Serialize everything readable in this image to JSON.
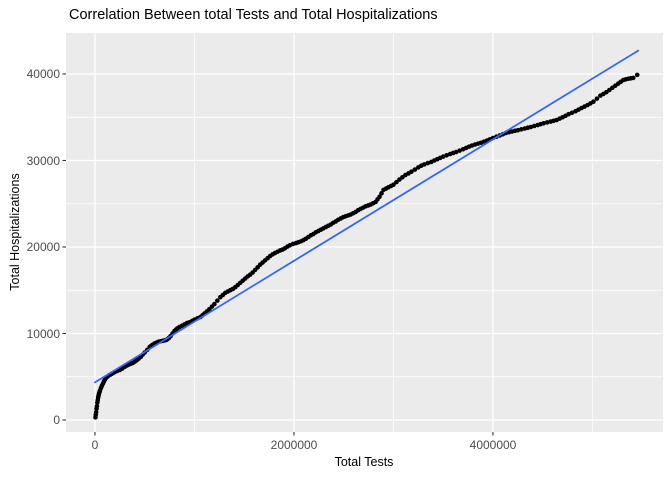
{
  "title": "Correlation Between total Tests and Total Hospitalizations",
  "chart_data": {
    "type": "scatter",
    "title": "Correlation Between total Tests and Total Hospitalizations",
    "xlabel": "Total Tests",
    "ylabel": "Total Hospitalizations",
    "xlim": [
      -291000,
      5709000
    ],
    "ylim": [
      -1390,
      44740
    ],
    "grid": true,
    "legend": false,
    "panel_bg": "#EBEBEB",
    "grid_color": "#FFFFFF",
    "tick_color": "#333333",
    "point_color": "#000000",
    "x_ticks": [
      {
        "value": 0,
        "label": "0"
      },
      {
        "value": 2000000,
        "label": "2000000"
      },
      {
        "value": 4000000,
        "label": "4000000"
      }
    ],
    "x_minor": [
      1000000,
      3000000,
      5000000
    ],
    "y_ticks": [
      {
        "value": 0,
        "label": "0"
      },
      {
        "value": 10000,
        "label": "10000"
      },
      {
        "value": 20000,
        "label": "20000"
      },
      {
        "value": 30000,
        "label": "30000"
      },
      {
        "value": 40000,
        "label": "40000"
      }
    ],
    "y_minor": [
      5000,
      15000,
      25000,
      35000
    ],
    "trend_line": {
      "color": "#3366FF",
      "x": [
        0,
        5460000
      ],
      "y": [
        4350,
        42700
      ]
    },
    "points": [
      [
        5000,
        300
      ],
      [
        8000,
        600
      ],
      [
        12000,
        900
      ],
      [
        16000,
        1300
      ],
      [
        20000,
        1600
      ],
      [
        24000,
        2000
      ],
      [
        28000,
        2300
      ],
      [
        32000,
        2600
      ],
      [
        36000,
        2800
      ],
      [
        40000,
        3000
      ],
      [
        45000,
        3200
      ],
      [
        50000,
        3400
      ],
      [
        60000,
        3700
      ],
      [
        70000,
        3950
      ],
      [
        80000,
        4200
      ],
      [
        90000,
        4450
      ],
      [
        100000,
        4650
      ],
      [
        110000,
        4860
      ],
      [
        125000,
        5000
      ],
      [
        140000,
        5150
      ],
      [
        155000,
        5250
      ],
      [
        170000,
        5350
      ],
      [
        185000,
        5450
      ],
      [
        200000,
        5550
      ],
      [
        225000,
        5670
      ],
      [
        250000,
        5780
      ],
      [
        275000,
        5950
      ],
      [
        300000,
        6150
      ],
      [
        320000,
        6300
      ],
      [
        340000,
        6400
      ],
      [
        360000,
        6500
      ],
      [
        380000,
        6590
      ],
      [
        400000,
        6750
      ],
      [
        420000,
        6900
      ],
      [
        440000,
        7100
      ],
      [
        460000,
        7300
      ],
      [
        480000,
        7550
      ],
      [
        500000,
        7800
      ],
      [
        525000,
        8100
      ],
      [
        550000,
        8440
      ],
      [
        565000,
        8570
      ],
      [
        580000,
        8700
      ],
      [
        600000,
        8850
      ],
      [
        620000,
        8950
      ],
      [
        640000,
        9050
      ],
      [
        660000,
        9100
      ],
      [
        680000,
        9150
      ],
      [
        700000,
        9200
      ],
      [
        715000,
        9250
      ],
      [
        730000,
        9350
      ],
      [
        745000,
        9500
      ],
      [
        760000,
        9700
      ],
      [
        780000,
        10000
      ],
      [
        800000,
        10300
      ],
      [
        815000,
        10450
      ],
      [
        830000,
        10600
      ],
      [
        850000,
        10750
      ],
      [
        875000,
        10900
      ],
      [
        900000,
        11050
      ],
      [
        925000,
        11200
      ],
      [
        950000,
        11300
      ],
      [
        975000,
        11450
      ],
      [
        1000000,
        11600
      ],
      [
        1030000,
        11750
      ],
      [
        1060000,
        11900
      ],
      [
        1080000,
        12100
      ],
      [
        1100000,
        12300
      ],
      [
        1125000,
        12550
      ],
      [
        1150000,
        12800
      ],
      [
        1175000,
        13100
      ],
      [
        1200000,
        13400
      ],
      [
        1230000,
        13800
      ],
      [
        1260000,
        14200
      ],
      [
        1285000,
        14450
      ],
      [
        1310000,
        14700
      ],
      [
        1335000,
        14850
      ],
      [
        1360000,
        15000
      ],
      [
        1385000,
        15150
      ],
      [
        1410000,
        15350
      ],
      [
        1435000,
        15600
      ],
      [
        1460000,
        15850
      ],
      [
        1485000,
        16100
      ],
      [
        1510000,
        16350
      ],
      [
        1535000,
        16600
      ],
      [
        1560000,
        16800
      ],
      [
        1585000,
        17050
      ],
      [
        1610000,
        17350
      ],
      [
        1635000,
        17650
      ],
      [
        1660000,
        17950
      ],
      [
        1685000,
        18200
      ],
      [
        1710000,
        18450
      ],
      [
        1735000,
        18700
      ],
      [
        1760000,
        18950
      ],
      [
        1785000,
        19150
      ],
      [
        1810000,
        19300
      ],
      [
        1835000,
        19450
      ],
      [
        1860000,
        19600
      ],
      [
        1885000,
        19700
      ],
      [
        1910000,
        19850
      ],
      [
        1935000,
        20050
      ],
      [
        1960000,
        20200
      ],
      [
        1990000,
        20350
      ],
      [
        2020000,
        20450
      ],
      [
        2045000,
        20550
      ],
      [
        2070000,
        20650
      ],
      [
        2095000,
        20800
      ],
      [
        2120000,
        20950
      ],
      [
        2145000,
        21150
      ],
      [
        2170000,
        21350
      ],
      [
        2195000,
        21500
      ],
      [
        2220000,
        21700
      ],
      [
        2245000,
        21850
      ],
      [
        2270000,
        22000
      ],
      [
        2295000,
        22150
      ],
      [
        2320000,
        22300
      ],
      [
        2345000,
        22450
      ],
      [
        2370000,
        22600
      ],
      [
        2395000,
        22800
      ],
      [
        2420000,
        22950
      ],
      [
        2445000,
        23150
      ],
      [
        2470000,
        23300
      ],
      [
        2495000,
        23450
      ],
      [
        2520000,
        23550
      ],
      [
        2545000,
        23650
      ],
      [
        2570000,
        23750
      ],
      [
        2595000,
        23900
      ],
      [
        2620000,
        24050
      ],
      [
        2645000,
        24250
      ],
      [
        2670000,
        24400
      ],
      [
        2695000,
        24550
      ],
      [
        2720000,
        24700
      ],
      [
        2745000,
        24800
      ],
      [
        2770000,
        24900
      ],
      [
        2795000,
        25050
      ],
      [
        2820000,
        25200
      ],
      [
        2840000,
        25500
      ],
      [
        2860000,
        25800
      ],
      [
        2880000,
        26200
      ],
      [
        2900000,
        26600
      ],
      [
        2925000,
        26750
      ],
      [
        2950000,
        26900
      ],
      [
        2975000,
        27050
      ],
      [
        3000000,
        27200
      ],
      [
        3030000,
        27500
      ],
      [
        3060000,
        27800
      ],
      [
        3090000,
        28060
      ],
      [
        3120000,
        28320
      ],
      [
        3150000,
        28500
      ],
      [
        3180000,
        28700
      ],
      [
        3215000,
        28950
      ],
      [
        3250000,
        29200
      ],
      [
        3280000,
        29400
      ],
      [
        3310000,
        29550
      ],
      [
        3345000,
        29700
      ],
      [
        3380000,
        29830
      ],
      [
        3410000,
        30000
      ],
      [
        3440000,
        30150
      ],
      [
        3470000,
        30300
      ],
      [
        3500000,
        30450
      ],
      [
        3535000,
        30600
      ],
      [
        3570000,
        30750
      ],
      [
        3600000,
        30870
      ],
      [
        3630000,
        30980
      ],
      [
        3665000,
        31140
      ],
      [
        3700000,
        31300
      ],
      [
        3730000,
        31450
      ],
      [
        3760000,
        31600
      ],
      [
        3790000,
        31730
      ],
      [
        3820000,
        31850
      ],
      [
        3850000,
        31950
      ],
      [
        3880000,
        32050
      ],
      [
        3910000,
        32180
      ],
      [
        3940000,
        32300
      ],
      [
        3970000,
        32450
      ],
      [
        4000000,
        32600
      ],
      [
        4035000,
        32750
      ],
      [
        4070000,
        32900
      ],
      [
        4100000,
        33040
      ],
      [
        4130000,
        33180
      ],
      [
        4160000,
        33270
      ],
      [
        4190000,
        33350
      ],
      [
        4220000,
        33430
      ],
      [
        4250000,
        33500
      ],
      [
        4285000,
        33600
      ],
      [
        4320000,
        33700
      ],
      [
        4350000,
        33790
      ],
      [
        4380000,
        33870
      ],
      [
        4415000,
        33990
      ],
      [
        4450000,
        34100
      ],
      [
        4480000,
        34200
      ],
      [
        4510000,
        34300
      ],
      [
        4545000,
        34400
      ],
      [
        4580000,
        34500
      ],
      [
        4610000,
        34590
      ],
      [
        4640000,
        34680
      ],
      [
        4670000,
        34840
      ],
      [
        4700000,
        35000
      ],
      [
        4730000,
        35170
      ],
      [
        4760000,
        35350
      ],
      [
        4795000,
        35520
      ],
      [
        4830000,
        35700
      ],
      [
        4860000,
        35880
      ],
      [
        4890000,
        36070
      ],
      [
        4920000,
        36230
      ],
      [
        4950000,
        36400
      ],
      [
        4980000,
        36600
      ],
      [
        5010000,
        36800
      ],
      [
        5045000,
        37150
      ],
      [
        5080000,
        37500
      ],
      [
        5110000,
        37700
      ],
      [
        5140000,
        37900
      ],
      [
        5170000,
        38150
      ],
      [
        5200000,
        38400
      ],
      [
        5230000,
        38650
      ],
      [
        5260000,
        38900
      ],
      [
        5285000,
        39100
      ],
      [
        5310000,
        39300
      ],
      [
        5335000,
        39380
      ],
      [
        5360000,
        39450
      ],
      [
        5385000,
        39500
      ],
      [
        5410000,
        39550
      ],
      [
        5450000,
        39900
      ]
    ]
  }
}
